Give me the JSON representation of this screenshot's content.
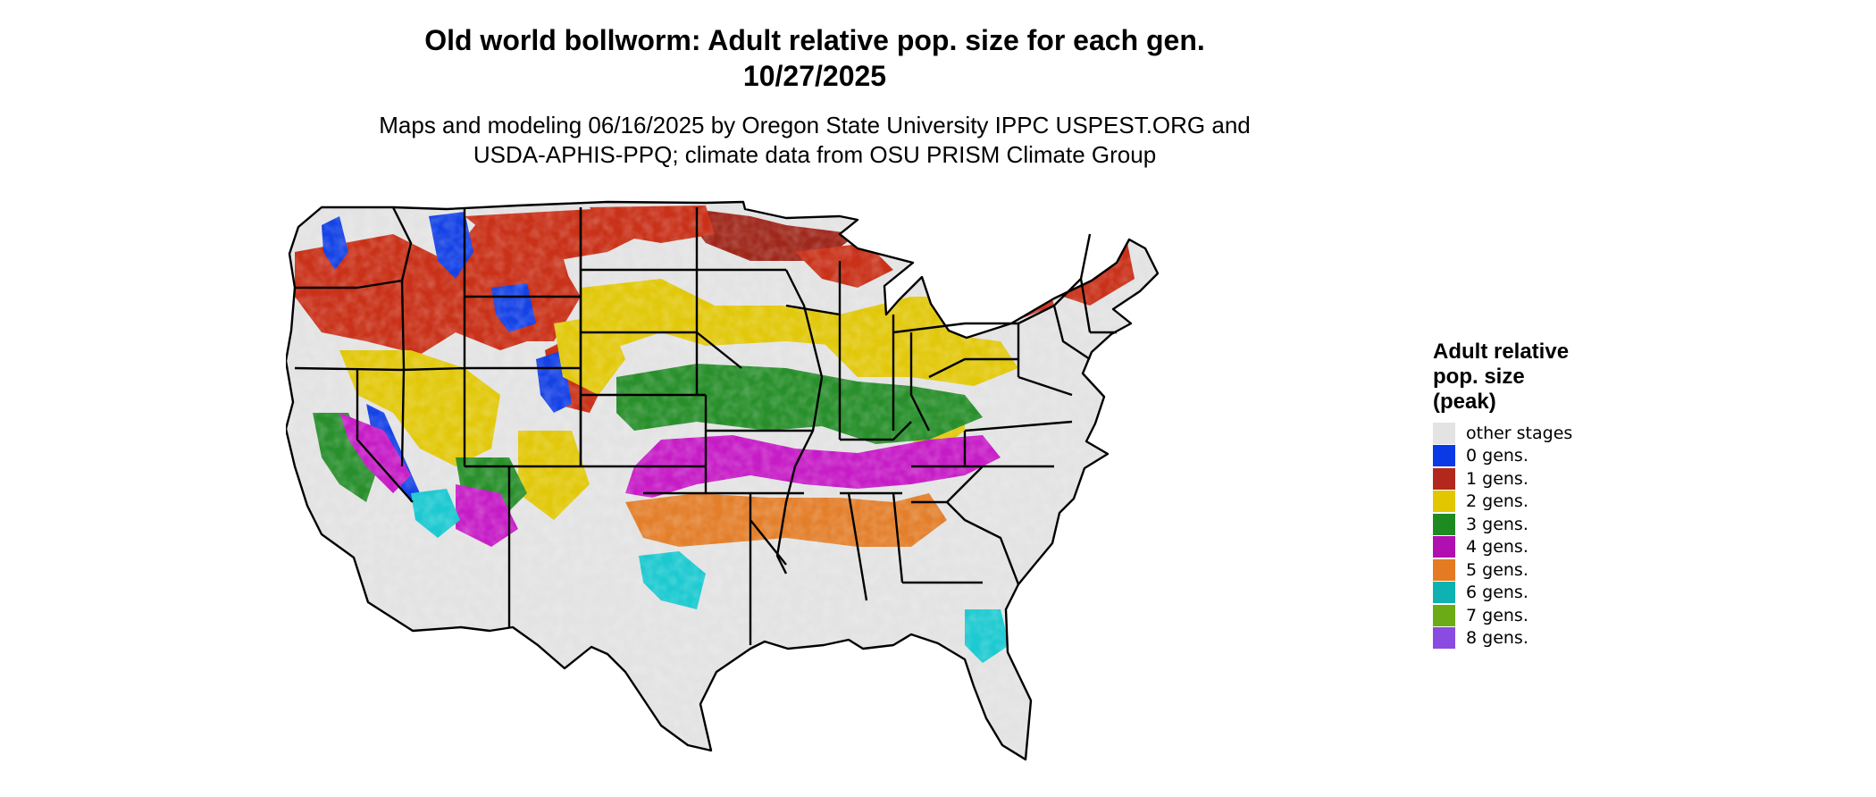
{
  "header": {
    "title_line1": "Old world bollworm: Adult relative pop. size for each gen.",
    "title_line2": "10/27/2025",
    "subtitle_line1": "Maps and modeling 06/16/2025 by Oregon State University IPPC USPEST.ORG and",
    "subtitle_line2": "USDA-APHIS-PPQ; climate data from OSU PRISM Climate Group"
  },
  "legend": {
    "title_line1": "Adult relative",
    "title_line2": "pop. size",
    "title_line3": "(peak)",
    "items": [
      {
        "label": "other stages",
        "color": "#e3e3e3"
      },
      {
        "label": "0 gens.",
        "color": "#0a3ae6"
      },
      {
        "label": "1 gens.",
        "color": "#b3281c"
      },
      {
        "label": "2 gens.",
        "color": "#e2c700"
      },
      {
        "label": "3 gens.",
        "color": "#1e8b22"
      },
      {
        "label": "4 gens.",
        "color": "#b010b0"
      },
      {
        "label": "5 gens.",
        "color": "#e47a22"
      },
      {
        "label": "6 gens.",
        "color": "#0fb2b2"
      },
      {
        "label": "7 gens.",
        "color": "#6aab16"
      },
      {
        "label": "8 gens.",
        "color": "#8a4be0"
      }
    ]
  },
  "map": {
    "background_color": "#e3e3e3",
    "border_color": "#000000",
    "colors": {
      "red": "#c8280e",
      "red_dark": "#9b1d10",
      "yellow": "#e2c700",
      "green": "#1e8b22",
      "magenta": "#c512c5",
      "orange": "#e47a22",
      "cyan": "#12c8d0",
      "blue": "#0a3ae6"
    }
  }
}
